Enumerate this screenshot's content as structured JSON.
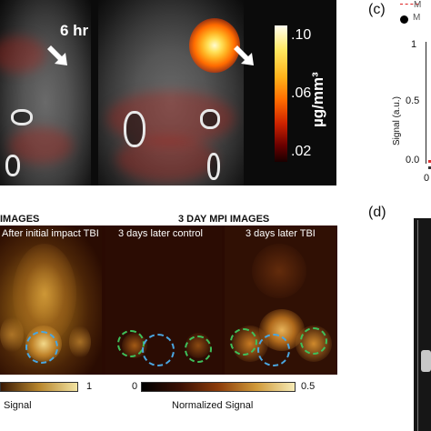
{
  "panel_a": {
    "time_label": "6 hr",
    "colorbar_ticks": [
      ".10",
      ".06",
      ".02"
    ],
    "colorbar_unit": "µg/mm³"
  },
  "panel_c": {
    "label": "(c)",
    "legend": [
      "M",
      "M"
    ],
    "y_label": "Signal (a.u.)",
    "y_ticks": [
      "1",
      "0.5",
      "0.0"
    ],
    "x_tick": "0"
  },
  "panel_b": {
    "heading_left": "IMAGES",
    "heading_right": "3 DAY MPI IMAGES",
    "captions": [
      "After initial impact TBI",
      "3 days later control",
      "3 days later TBI"
    ],
    "colorbar_left": {
      "max": "1",
      "label": "Signal"
    },
    "colorbar_right": {
      "min": "0",
      "max": "0.5",
      "label": "Normalized Signal"
    }
  },
  "panel_d": {
    "label": "(d)"
  }
}
